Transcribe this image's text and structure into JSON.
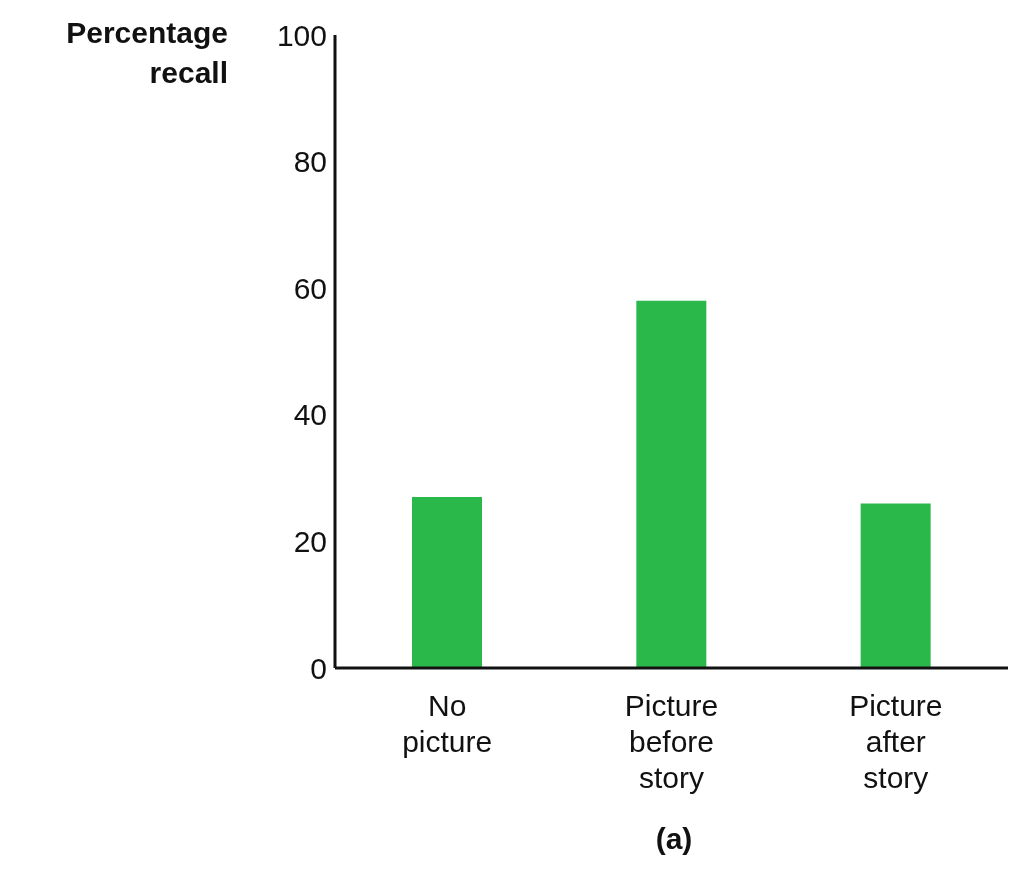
{
  "chart_data": {
    "type": "bar",
    "ylabel": "Percentage recall",
    "categories": [
      "No picture",
      "Picture before story",
      "Picture after story"
    ],
    "values": [
      27,
      58,
      26
    ],
    "color": "#2bb84a",
    "ylim": [
      0,
      100
    ],
    "yticks": [
      0,
      20,
      40,
      60,
      80,
      100
    ],
    "grid": false,
    "annotations": [
      "(a)"
    ]
  }
}
